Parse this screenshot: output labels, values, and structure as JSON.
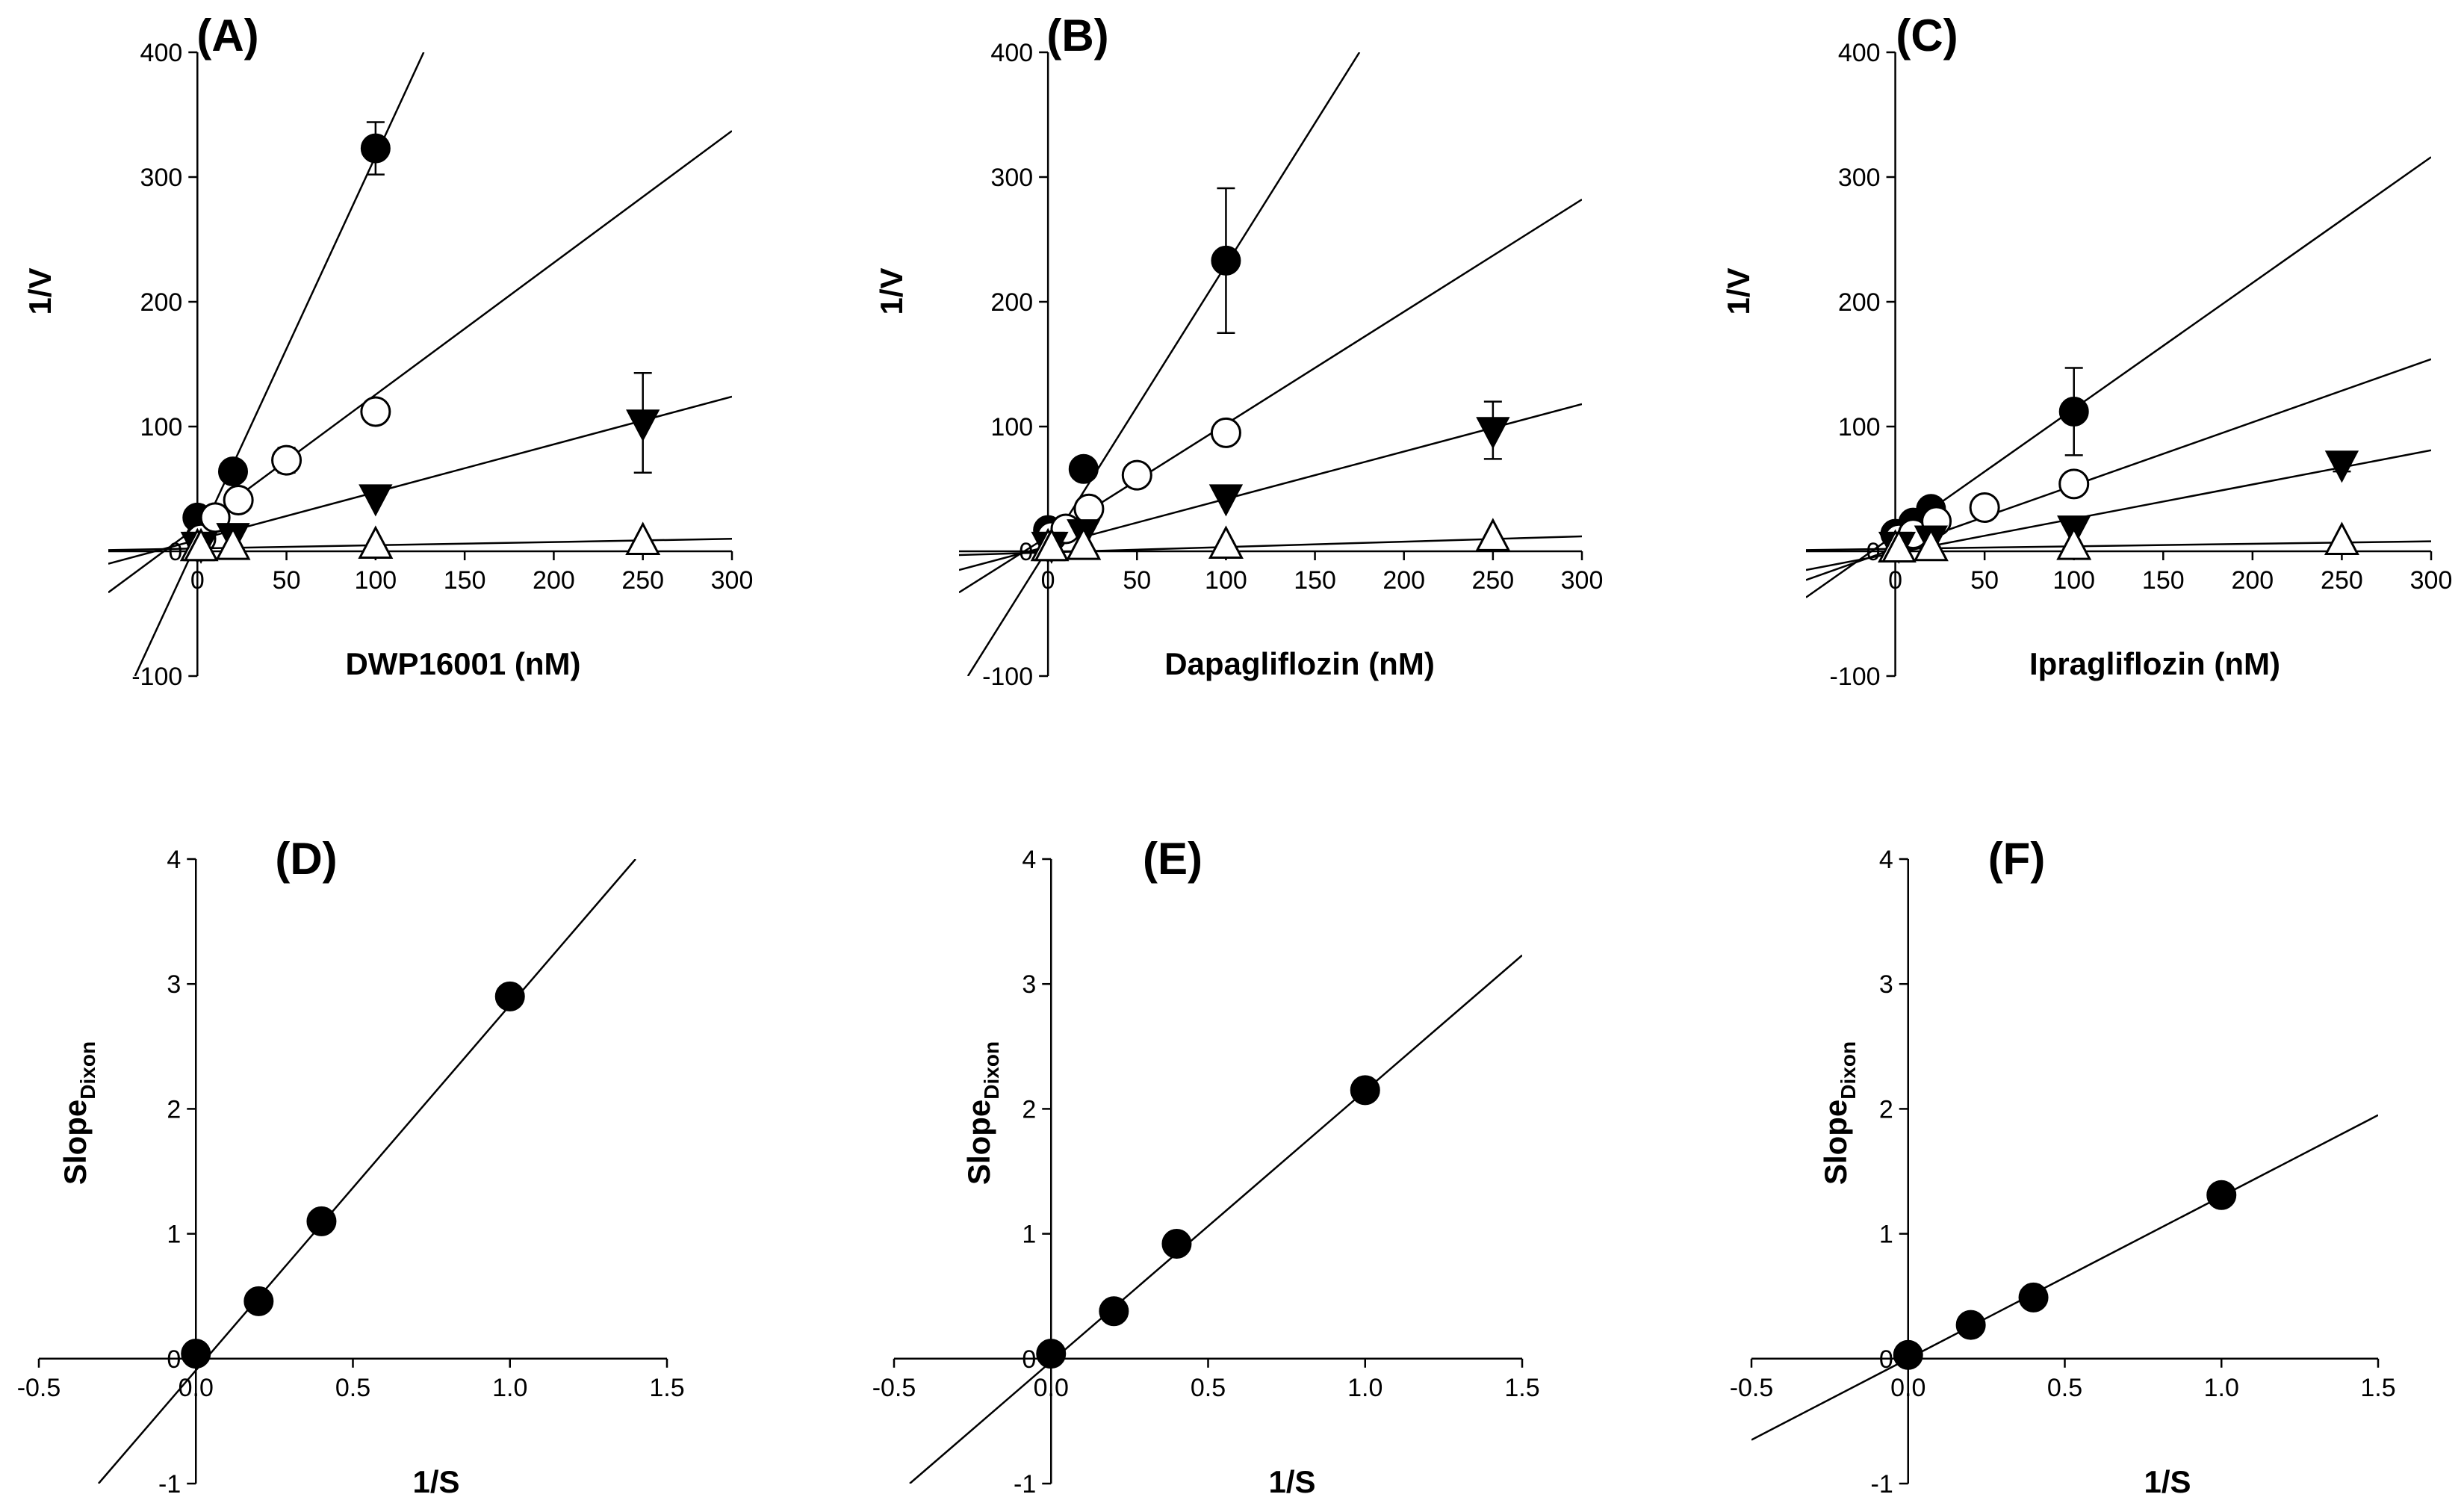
{
  "figure": {
    "colors": {
      "ink": "#000000",
      "open_fill": "#ffffff"
    }
  },
  "chart_data": [
    {
      "panel": "(A)",
      "type": "scatter",
      "subtype": "dixon",
      "xlabel": "DWP16001 (nM)",
      "ylabel": "1/V",
      "xlim": [
        -50,
        300
      ],
      "ylim": [
        -100,
        400
      ],
      "xticks": [
        "0",
        "50",
        "100",
        "150",
        "200",
        "250",
        "300"
      ],
      "yticks": [
        "-100",
        "0",
        "100",
        "200",
        "300",
        "400"
      ],
      "series": [
        {
          "marker": "filled-circle",
          "line": [
            -35,
            -100,
            127,
            400
          ],
          "points": [
            [
              0,
              27,
              0
            ],
            [
              2,
              12,
              0
            ],
            [
              20,
              64,
              0
            ],
            [
              100,
              323,
              21
            ]
          ]
        },
        {
          "marker": "open-circle",
          "line": [
            -50,
            -33,
            300,
            337
          ],
          "points": [
            [
              2,
              10,
              0
            ],
            [
              10,
              27,
              0
            ],
            [
              23,
              41,
              0
            ],
            [
              50,
              73,
              10
            ],
            [
              100,
              112,
              8
            ]
          ]
        },
        {
          "marker": "filled-triangle-down",
          "line": [
            -50,
            -10,
            300,
            124
          ],
          "points": [
            [
              0,
              5,
              0
            ],
            [
              2,
              5,
              0
            ],
            [
              20,
              12,
              0
            ],
            [
              100,
              43,
              0
            ],
            [
              250,
              103,
              40
            ]
          ]
        },
        {
          "marker": "open-triangle-up",
          "line": [
            -50,
            1,
            300,
            10
          ],
          "points": [
            [
              0,
              3,
              0
            ],
            [
              2,
              3,
              0
            ],
            [
              20,
              4,
              0
            ],
            [
              100,
              5,
              0
            ],
            [
              250,
              8,
              0
            ]
          ]
        }
      ]
    },
    {
      "panel": "(B)",
      "type": "scatter",
      "subtype": "dixon",
      "xlabel": "Dapagliflozin (nM)",
      "ylabel": "1/V",
      "xlim": [
        -50,
        300
      ],
      "ylim": [
        -100,
        400
      ],
      "xticks": [
        "0",
        "50",
        "100",
        "150",
        "200",
        "250",
        "300"
      ],
      "yticks": [
        "-100",
        "0",
        "100",
        "200",
        "300",
        "400"
      ],
      "series": [
        {
          "marker": "filled-circle",
          "line": [
            -45,
            -100,
            175,
            400
          ],
          "points": [
            [
              0,
              17,
              0
            ],
            [
              20,
              66,
              0
            ],
            [
              100,
              233,
              58
            ]
          ]
        },
        {
          "marker": "open-circle",
          "line": [
            -50,
            -33,
            300,
            282
          ],
          "points": [
            [
              2,
              12,
              0
            ],
            [
              10,
              18,
              0
            ],
            [
              23,
              34,
              0
            ],
            [
              50,
              61,
              0
            ],
            [
              100,
              95,
              0
            ]
          ]
        },
        {
          "marker": "filled-triangle-down",
          "line": [
            -50,
            -15,
            300,
            118
          ],
          "points": [
            [
              0,
              5,
              0
            ],
            [
              2,
              5,
              0
            ],
            [
              20,
              15,
              0
            ],
            [
              100,
              43,
              0
            ],
            [
              250,
              97,
              23
            ]
          ]
        },
        {
          "marker": "open-triangle-up",
          "line": [
            -50,
            -3,
            300,
            12
          ],
          "points": [
            [
              0,
              3,
              0
            ],
            [
              2,
              3,
              0
            ],
            [
              20,
              4,
              0
            ],
            [
              100,
              5,
              0
            ],
            [
              250,
              11,
              0
            ]
          ]
        }
      ]
    },
    {
      "panel": "(C)",
      "type": "scatter",
      "subtype": "dixon",
      "xlabel": "Ipragliflozin (nM)",
      "ylabel": "1/V",
      "xlim": [
        -50,
        300
      ],
      "ylim": [
        -100,
        400
      ],
      "xticks": [
        "0",
        "50",
        "100",
        "150",
        "200",
        "250",
        "300"
      ],
      "yticks": [
        "-100",
        "0",
        "100",
        "200",
        "300",
        "400"
      ],
      "series": [
        {
          "marker": "filled-circle",
          "line": [
            -50,
            -37,
            300,
            316
          ],
          "points": [
            [
              0,
              14,
              0
            ],
            [
              10,
              23,
              0
            ],
            [
              20,
              34,
              0
            ],
            [
              100,
              112,
              35
            ]
          ]
        },
        {
          "marker": "open-circle",
          "line": [
            -50,
            -23,
            300,
            154
          ],
          "points": [
            [
              2,
              10,
              0
            ],
            [
              10,
              14,
              0
            ],
            [
              23,
              24,
              0
            ],
            [
              50,
              35,
              0
            ],
            [
              100,
              54,
              0
            ]
          ]
        },
        {
          "marker": "filled-triangle-down",
          "line": [
            -50,
            -15,
            300,
            81
          ],
          "points": [
            [
              0,
              5,
              0
            ],
            [
              2,
              5,
              0
            ],
            [
              20,
              10,
              0
            ],
            [
              100,
              18,
              0
            ],
            [
              250,
              70,
              6
            ]
          ]
        },
        {
          "marker": "open-triangle-up",
          "line": [
            -50,
            1,
            300,
            8
          ],
          "points": [
            [
              0,
              2,
              0
            ],
            [
              2,
              2,
              0
            ],
            [
              20,
              3,
              0
            ],
            [
              100,
              4,
              0
            ],
            [
              250,
              8,
              0
            ]
          ]
        }
      ]
    },
    {
      "panel": "(D)",
      "type": "scatter",
      "subtype": "replot",
      "xlabel": "1/S",
      "ylabel": "Slope",
      "ylabel_sub": "Dixon",
      "xlim": [
        -0.5,
        1.5
      ],
      "ylim": [
        -1,
        4
      ],
      "xticks": [
        "-0.5",
        "0.0",
        "0.5",
        "1.0",
        "1.5"
      ],
      "yticks": [
        "-1",
        "0",
        "1",
        "2",
        "3",
        "4"
      ],
      "line": [
        -0.31,
        -1,
        1.4,
        4
      ],
      "points": [
        [
          0.0,
          0.04
        ],
        [
          0.2,
          0.46
        ],
        [
          0.4,
          1.1
        ],
        [
          1.0,
          2.9
        ]
      ]
    },
    {
      "panel": "(E)",
      "type": "scatter",
      "subtype": "replot",
      "xlabel": "1/S",
      "ylabel": "Slope",
      "ylabel_sub": "Dixon",
      "xlim": [
        -0.5,
        1.5
      ],
      "ylim": [
        -1,
        4
      ],
      "xticks": [
        "-0.5",
        "0.0",
        "0.5",
        "1.0",
        "1.5"
      ],
      "yticks": [
        "-1",
        "0",
        "1",
        "2",
        "3",
        "4"
      ],
      "line": [
        -0.45,
        -1,
        1.5,
        3.23
      ],
      "points": [
        [
          0.0,
          0.04
        ],
        [
          0.2,
          0.38
        ],
        [
          0.4,
          0.92
        ],
        [
          1.0,
          2.15
        ]
      ]
    },
    {
      "panel": "(F)",
      "type": "scatter",
      "subtype": "replot",
      "xlabel": "1/S",
      "ylabel": "Slope",
      "ylabel_sub": "Dixon",
      "xlim": [
        -0.5,
        1.5
      ],
      "ylim": [
        -1,
        4
      ],
      "xticks": [
        "-0.5",
        "0.0",
        "0.5",
        "1.0",
        "1.5"
      ],
      "yticks": [
        "-1",
        "0",
        "1",
        "2",
        "3",
        "4"
      ],
      "line": [
        -0.5,
        -0.65,
        1.5,
        1.95
      ],
      "points": [
        [
          0.0,
          0.03
        ],
        [
          0.2,
          0.27
        ],
        [
          0.4,
          0.49
        ],
        [
          1.0,
          1.31
        ]
      ]
    }
  ]
}
